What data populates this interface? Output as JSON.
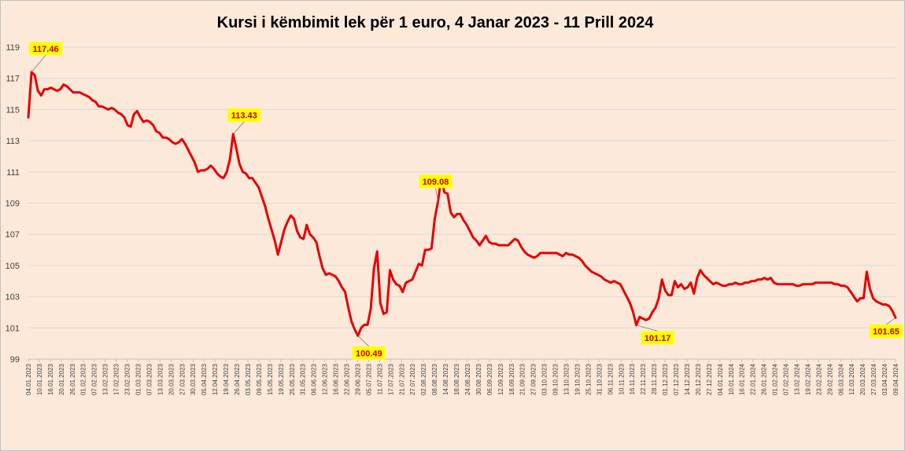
{
  "chart_data": {
    "type": "line",
    "title": "Kursi i këmbimit lek për 1 euro, 4 Janar 2023 - 11 Prill 2024",
    "xlabel": "",
    "ylabel": "",
    "ylim": [
      99,
      119
    ],
    "yticks": [
      "99",
      "101",
      "103",
      "105",
      "107",
      "109",
      "111",
      "113",
      "115",
      "117",
      "119"
    ],
    "grid": true,
    "line_color": "#e60000",
    "label_bg": "#ffff00",
    "label_color": "#c00000",
    "x_tick_labels": [
      "04.01.2023",
      "10.01.2023",
      "16.01.2023",
      "20.01.2023",
      "26.01.2023",
      "01.02.2023",
      "07.02.2023",
      "13.02.2023",
      "17.02.2023",
      "23.02.2023",
      "01.03.2023",
      "07.03.2023",
      "13.03.2023",
      "20.03.2023",
      "27.03.2023",
      "30.03.2023",
      "05.04.2023",
      "12.04.2023",
      "19.04.2023",
      "26.04.2023",
      "03.05.2023",
      "09.05.2023",
      "15.05.2023",
      "19.05.2023",
      "25.05.2023",
      "31.05.2023",
      "06.06.2023",
      "12.06.2023",
      "16.06.2023",
      "22.06.2023",
      "29.06.2023",
      "05.07.2023",
      "11.07.2023",
      "17.07.2023",
      "21.07.2023",
      "27.07.2023",
      "02.08.2023",
      "08.08.2023",
      "14.08.2023",
      "18.08.2023",
      "24.08.2023",
      "30.08.2023",
      "06.09.2023",
      "12.09.2023",
      "18.09.2023",
      "21.09.2023",
      "27.09.2023",
      "03.10.2023",
      "09.10.2023",
      "13.10.2023",
      "19.10.2023",
      "25.10.2023",
      "31.10.2023",
      "06.11.2023",
      "10.11.2023",
      "16.11.2023",
      "22.11.2023",
      "28.11.2023",
      "01.12.2023",
      "07.12.2023",
      "14.12.2023",
      "20.12.2023",
      "27.12.2023",
      "04.01.2024",
      "10.01.2024",
      "16.01.2024",
      "22.01.2024",
      "26.01.2024",
      "01.02.2024",
      "07.02.2024",
      "13.02.2024",
      "19.02.2024",
      "23.02.2024",
      "29.02.2024",
      "06.03.2024",
      "12.03.2024",
      "20.03.2024",
      "27.03.2024",
      "03.04.2024",
      "09.04.2024"
    ],
    "series": [
      {
        "values": [
          114.5,
          117.4,
          117.2,
          116.2,
          115.9,
          116.3,
          116.3,
          116.4,
          116.3,
          116.2,
          116.3,
          116.6,
          116.5,
          116.3,
          116.1,
          116.1,
          116.1,
          116.0,
          115.9,
          115.8,
          115.6,
          115.5,
          115.2,
          115.2,
          115.1,
          115.0,
          115.1,
          115.0,
          114.8,
          114.7,
          114.5,
          114.0,
          113.9,
          114.7,
          114.9,
          114.5,
          114.2,
          114.3,
          114.2,
          114.0,
          113.6,
          113.5,
          113.2,
          113.2,
          113.1,
          112.9,
          112.8,
          112.9,
          113.1,
          112.8,
          112.4,
          112.0,
          111.6,
          111.0,
          111.1,
          111.1,
          111.2,
          111.4,
          111.2,
          110.9,
          110.7,
          110.6,
          111.0,
          111.8,
          113.43,
          112.5,
          111.5,
          111.0,
          110.9,
          110.6,
          110.6,
          110.3,
          110.0,
          109.4,
          108.8,
          108.0,
          107.3,
          106.6,
          105.7,
          106.5,
          107.3,
          107.8,
          108.2,
          108.0,
          107.2,
          106.8,
          106.7,
          107.6,
          107.0,
          106.8,
          106.5,
          105.6,
          104.8,
          104.4,
          104.5,
          104.4,
          104.3,
          104.0,
          103.6,
          103.3,
          102.3,
          101.4,
          100.9,
          100.49,
          101.0,
          101.2,
          101.2,
          102.2,
          104.8,
          105.9,
          102.6,
          101.9,
          102.0,
          104.7,
          104.1,
          103.8,
          103.7,
          103.3,
          103.9,
          104.0,
          104.1,
          104.6,
          105.1,
          105.0,
          106.0,
          106.0,
          106.1,
          108.0,
          109.08,
          110.6,
          109.7,
          109.6,
          108.4,
          108.1,
          108.3,
          108.3,
          107.9,
          107.6,
          107.2,
          106.8,
          106.6,
          106.3,
          106.6,
          106.9,
          106.5,
          106.4,
          106.4,
          106.3,
          106.3,
          106.3,
          106.3,
          106.5,
          106.7,
          106.6,
          106.2,
          105.9,
          105.7,
          105.6,
          105.5,
          105.6,
          105.8,
          105.8,
          105.8,
          105.8,
          105.8,
          105.8,
          105.7,
          105.6,
          105.8,
          105.7,
          105.7,
          105.6,
          105.5,
          105.3,
          105.0,
          104.8,
          104.6,
          104.5,
          104.4,
          104.3,
          104.1,
          104.0,
          103.9,
          104.0,
          103.9,
          103.8,
          103.4,
          103.0,
          102.6,
          102.0,
          101.17,
          101.7,
          101.6,
          101.5,
          101.6,
          102.0,
          102.3,
          102.9,
          104.1,
          103.4,
          103.1,
          103.1,
          104.0,
          103.6,
          103.8,
          103.5,
          103.6,
          103.9,
          103.2,
          104.2,
          104.7,
          104.4,
          104.2,
          104.0,
          103.8,
          103.9,
          103.8,
          103.7,
          103.7,
          103.8,
          103.8,
          103.9,
          103.8,
          103.8,
          103.9,
          103.9,
          104.0,
          104.0,
          104.1,
          104.1,
          104.2,
          104.1,
          104.2,
          103.9,
          103.8,
          103.8,
          103.8,
          103.8,
          103.8,
          103.8,
          103.7,
          103.7,
          103.8,
          103.8,
          103.8,
          103.8,
          103.9,
          103.9,
          103.9,
          103.9,
          103.9,
          103.9,
          103.8,
          103.8,
          103.7,
          103.7,
          103.6,
          103.3,
          103.0,
          102.7,
          102.9,
          102.9,
          104.6,
          103.5,
          102.9,
          102.7,
          102.6,
          102.5,
          102.5,
          102.4,
          102.1,
          101.65
        ]
      }
    ],
    "annotations": [
      {
        "label": "117.46"
      },
      {
        "label": "113.43"
      },
      {
        "label": "100.49"
      },
      {
        "label": "109.08"
      },
      {
        "label": "101.17"
      },
      {
        "label": "101.65"
      }
    ]
  }
}
